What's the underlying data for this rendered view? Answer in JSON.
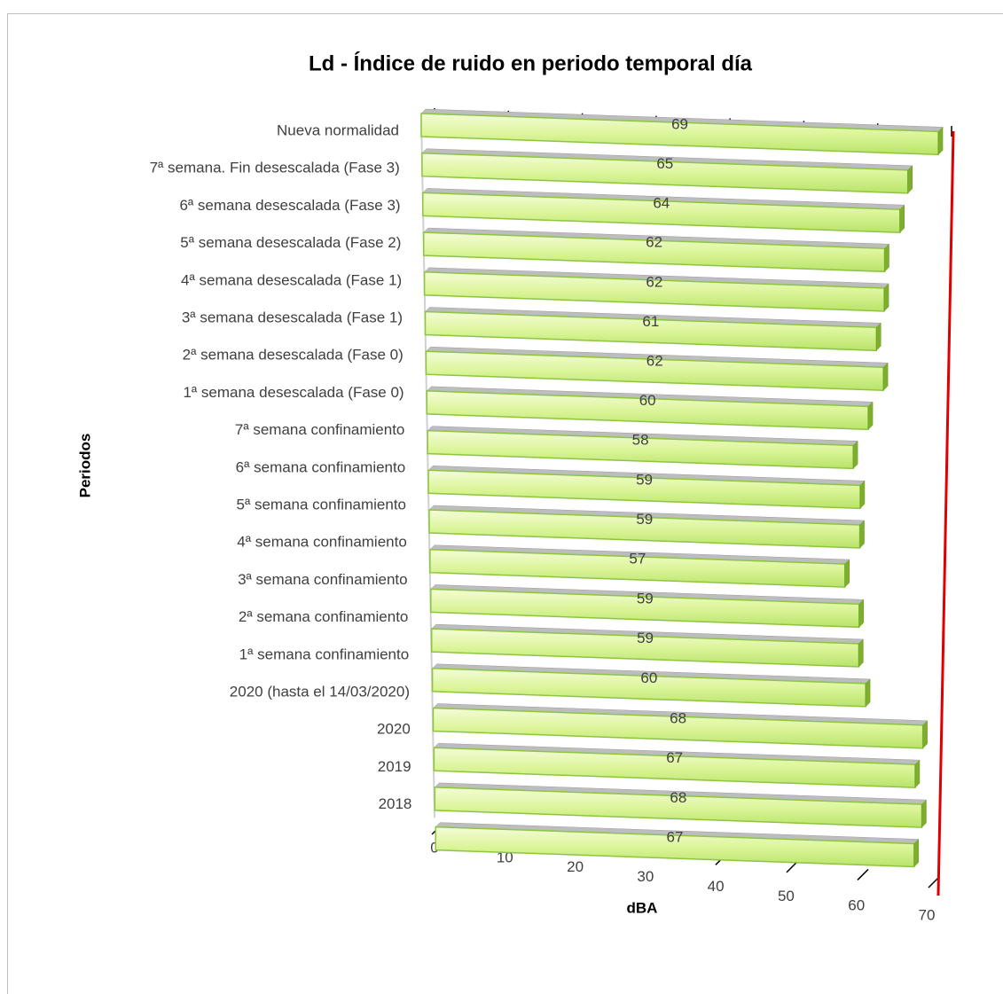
{
  "chart_data": {
    "type": "bar",
    "orientation": "horizontal",
    "title": "Ld - Índice de ruido en periodo temporal día",
    "x_label": "dBA",
    "y_label": "Periodos",
    "categories": [
      "Nueva normalidad",
      "7ª semana. Fin desescalada (Fase 3)",
      "6ª semana desescalada (Fase 3)",
      "5ª semana desescalada (Fase 2)",
      "4ª semana desescalada (Fase 1)",
      "3ª semana desescalada (Fase 1)",
      "2ª semana desescalada (Fase 0)",
      "1ª semana desescalada (Fase 0)",
      "7ª semana confinamiento",
      "6ª semana confinamiento",
      "5ª semana confinamiento",
      "4ª semana confinamiento",
      "3ª semana confinamiento",
      "2ª semana confinamiento",
      "1ª semana confinamiento",
      "2020 (hasta el 14/03/2020)",
      "2020",
      "2019",
      "2018"
    ],
    "values": [
      69,
      65,
      64,
      62,
      62,
      61,
      62,
      60,
      58,
      59,
      59,
      57,
      59,
      59,
      60,
      68,
      67,
      68,
      67
    ],
    "color": "#d9f28f",
    "xlim": [
      0,
      70
    ],
    "xticks": [
      0,
      10,
      20,
      30,
      40,
      50,
      60,
      70
    ]
  }
}
